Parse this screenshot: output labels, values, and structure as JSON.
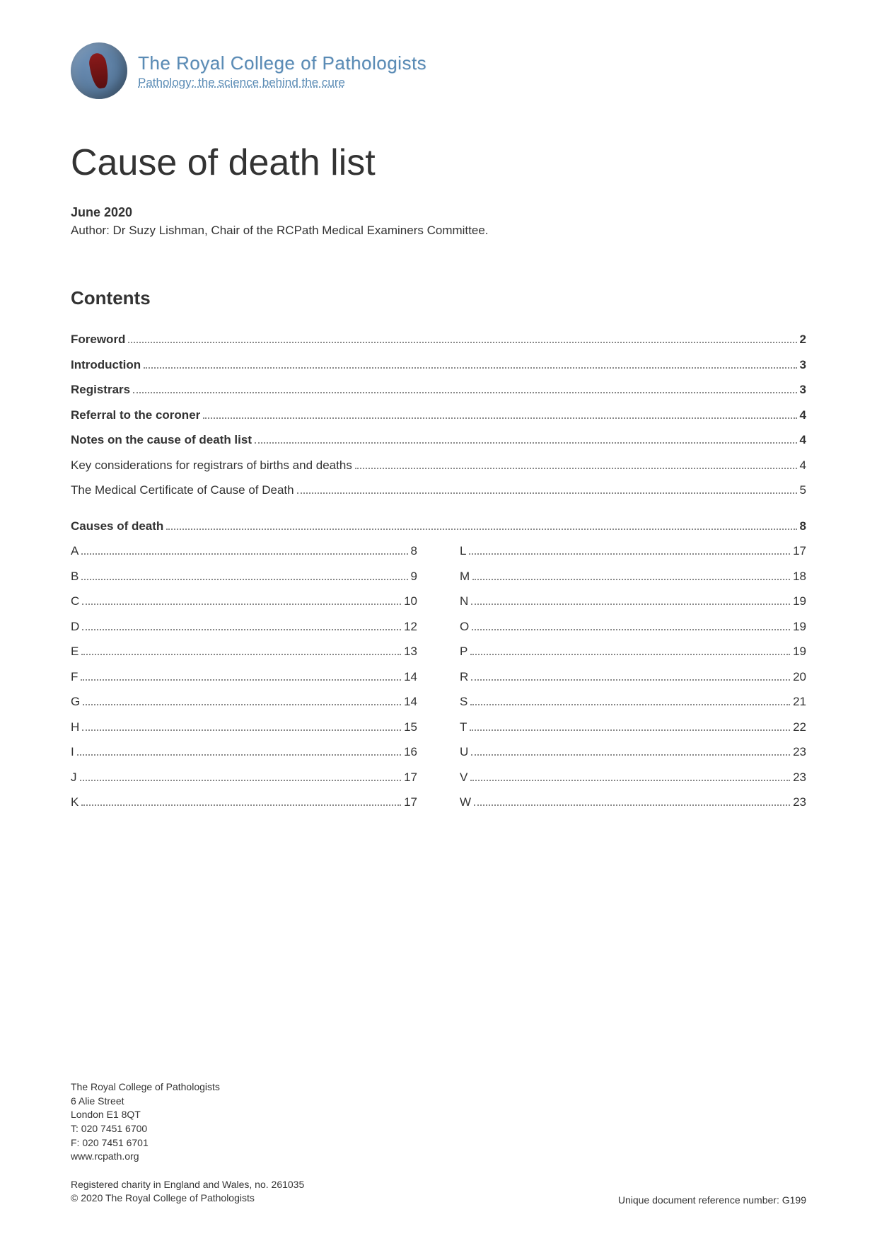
{
  "logo": {
    "title": "The Royal College of Pathologists",
    "tagline": "Pathology: the science behind the cure"
  },
  "document": {
    "title": "Cause of death list",
    "date": "June 2020",
    "author_text": "Author: Dr Suzy Lishman, Chair of the RCPath Medical Examiners Committee."
  },
  "contents": {
    "heading": "Contents",
    "main_entries": [
      {
        "label": "Foreword",
        "page": "2",
        "bold": true
      },
      {
        "label": "Introduction",
        "page": "3",
        "bold": true
      },
      {
        "label": "Registrars",
        "page": "3",
        "bold": true
      },
      {
        "label": "Referral to the coroner",
        "page": "4",
        "bold": true
      },
      {
        "label": "Notes on the cause of death list",
        "page": "4",
        "bold": true
      },
      {
        "label": "Key considerations for registrars of births and deaths",
        "page": "4",
        "bold": false
      },
      {
        "label": "The Medical Certificate of Cause of Death",
        "page": "5",
        "bold": false
      }
    ],
    "causes_heading": {
      "label": "Causes of death",
      "page": "8",
      "bold": true
    },
    "alpha_left": [
      {
        "label": "A",
        "page": "8"
      },
      {
        "label": "B",
        "page": "9"
      },
      {
        "label": "C",
        "page": "10"
      },
      {
        "label": "D",
        "page": "12"
      },
      {
        "label": "E",
        "page": "13"
      },
      {
        "label": "F",
        "page": "14"
      },
      {
        "label": "G",
        "page": "14"
      },
      {
        "label": "H",
        "page": "15"
      },
      {
        "label": "I",
        "page": "16"
      },
      {
        "label": "J",
        "page": "17"
      },
      {
        "label": "K",
        "page": "17"
      }
    ],
    "alpha_right": [
      {
        "label": "L",
        "page": "17"
      },
      {
        "label": "M",
        "page": "18"
      },
      {
        "label": "N",
        "page": "19"
      },
      {
        "label": "O",
        "page": "19"
      },
      {
        "label": "P",
        "page": "19"
      },
      {
        "label": "R",
        "page": "20"
      },
      {
        "label": "S",
        "page": "21"
      },
      {
        "label": "T",
        "page": "22"
      },
      {
        "label": "U",
        "page": "23"
      },
      {
        "label": "V",
        "page": "23"
      },
      {
        "label": "W",
        "page": "23"
      }
    ]
  },
  "footer": {
    "org": "The Royal College of Pathologists",
    "address1": "6 Alie Street",
    "address2": "London E1 8QT",
    "tel": "T: 020 7451 6700",
    "fax": "F: 020 7451 6701",
    "web": "www.rcpath.org",
    "charity": "Registered charity in England and Wales, no. 261035",
    "copyright": "© 2020 The Royal College of Pathologists",
    "reference": "Unique document reference number: G199"
  },
  "styling": {
    "background_color": "#ffffff",
    "text_color": "#333333",
    "logo_color": "#5a8bb5",
    "title_fontsize": 52,
    "body_fontsize": 17,
    "footer_fontsize": 14,
    "contents_heading_fontsize": 26
  }
}
